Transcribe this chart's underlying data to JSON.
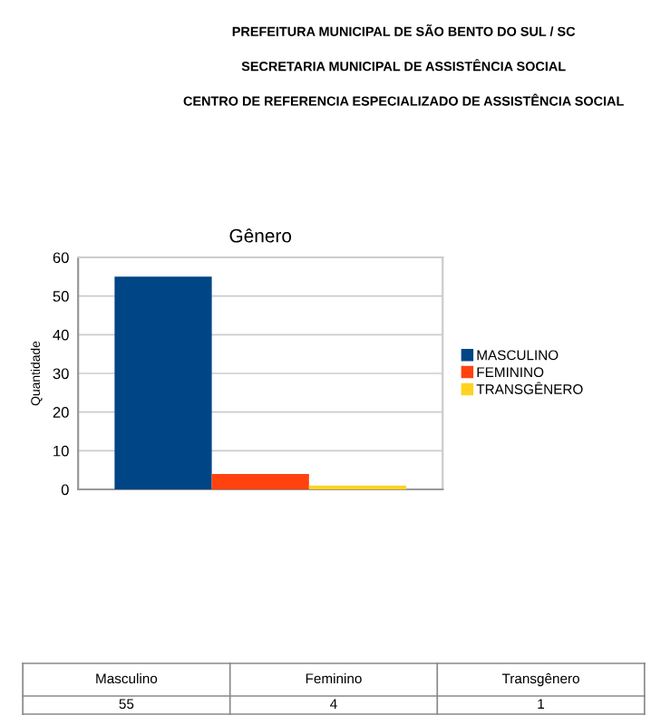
{
  "chart_data": {
    "type": "bar",
    "title": "Gênero",
    "ylabel": "Quantidade",
    "categories": [
      null
    ],
    "series": [
      {
        "name": "MASCULINO",
        "color": "#004586",
        "values": [
          55
        ]
      },
      {
        "name": "FEMININO",
        "color": "#ff420e",
        "values": [
          4
        ]
      },
      {
        "name": "TRANSGÊNERO",
        "color": "#ffd320",
        "values": [
          1
        ]
      }
    ],
    "ylim": [
      0,
      60
    ],
    "yticks": [
      0,
      10,
      20,
      30,
      40,
      50,
      60
    ],
    "grid": "y",
    "legend": "right",
    "annotations": [
      "PREFEITURA MUNICIPAL DE SÃO BENTO DO SUL / SC",
      "SECRETARIA MUNICIPAL DE ASSISTÊNCIA SOCIAL",
      "CENTRO DE REFERENCIA ESPECIALIZADO DE ASSISTÊNCIA SOCIAL",
      "Masculino",
      "Feminino",
      "Transgênero",
      "55",
      "4",
      "1"
    ]
  }
}
